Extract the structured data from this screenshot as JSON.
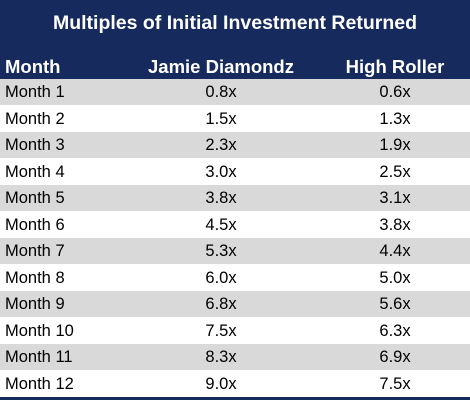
{
  "colors": {
    "header_bg": "#162a5e",
    "header_text": "#ffffff",
    "row_shade": "#d9d9d9"
  },
  "chart_data": {
    "type": "table",
    "title": "Multiples of Initial Investment Returned",
    "columns": [
      "Month",
      "Jamie Diamondz",
      "High Roller"
    ],
    "rows": [
      [
        "Month 1",
        "0.8x",
        "0.6x"
      ],
      [
        "Month 2",
        "1.5x",
        "1.3x"
      ],
      [
        "Month 3",
        "2.3x",
        "1.9x"
      ],
      [
        "Month 4",
        "3.0x",
        "2.5x"
      ],
      [
        "Month 5",
        "3.8x",
        "3.1x"
      ],
      [
        "Month 6",
        "4.5x",
        "3.8x"
      ],
      [
        "Month 7",
        "5.3x",
        "4.4x"
      ],
      [
        "Month 8",
        "6.0x",
        "5.0x"
      ],
      [
        "Month 9",
        "6.8x",
        "5.6x"
      ],
      [
        "Month 10",
        "7.5x",
        "6.3x"
      ],
      [
        "Month 11",
        "8.3x",
        "6.9x"
      ],
      [
        "Month 12",
        "9.0x",
        "7.5x"
      ]
    ],
    "series": [
      {
        "name": "Jamie Diamondz",
        "values": [
          0.8,
          1.5,
          2.3,
          3.0,
          3.8,
          4.5,
          5.3,
          6.0,
          6.8,
          7.5,
          8.3,
          9.0
        ]
      },
      {
        "name": "High Roller",
        "values": [
          0.6,
          1.3,
          1.9,
          2.5,
          3.1,
          3.8,
          4.4,
          5.0,
          5.6,
          6.3,
          6.9,
          7.5
        ]
      }
    ]
  }
}
